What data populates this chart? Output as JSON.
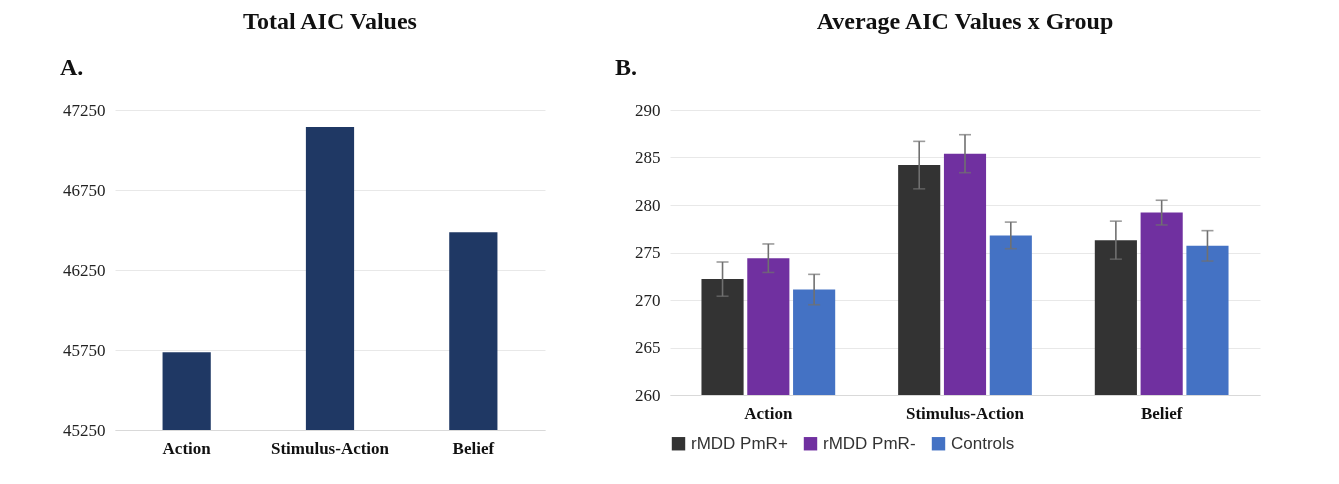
{
  "chart_data": [
    {
      "type": "bar",
      "title": "Total AIC Values",
      "annotations": [
        "A."
      ],
      "categories": [
        "Action",
        "Stimulus-Action",
        "Belief"
      ],
      "values": [
        45736,
        47143,
        46486
      ],
      "color": "#1f3864",
      "ylim": [
        45250,
        47250
      ],
      "yticks": [
        45250,
        45750,
        46250,
        46750,
        47250
      ],
      "grid": "y"
    },
    {
      "type": "bar",
      "title": "Average AIC Values x Group",
      "annotations": [
        "B."
      ],
      "categories": [
        "Action",
        "Stimulus-Action",
        "Belief"
      ],
      "series": [
        {
          "name": "rMDD PmR+",
          "color": "#333333",
          "values": [
            272.2,
            284.2,
            276.3
          ],
          "errors": [
            1.8,
            2.5,
            2.0
          ]
        },
        {
          "name": "rMDD PmR-",
          "color": "#7030a0",
          "values": [
            274.4,
            285.4,
            279.2
          ],
          "errors": [
            1.5,
            2.0,
            1.3
          ]
        },
        {
          "name": "Controls",
          "color": "#4472c4",
          "values": [
            271.1,
            276.8,
            275.7
          ],
          "errors": [
            1.6,
            1.4,
            1.6
          ]
        }
      ],
      "ylim": [
        260,
        290
      ],
      "yticks": [
        260,
        265,
        270,
        275,
        280,
        285,
        290
      ],
      "grid": "y",
      "legend": "bottom"
    }
  ]
}
